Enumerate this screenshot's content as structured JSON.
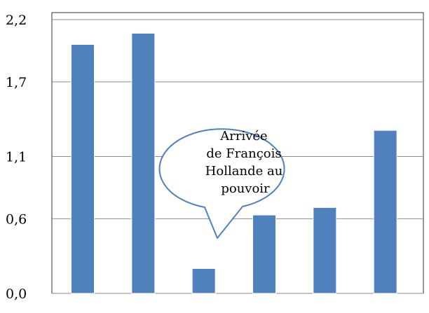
{
  "chart_data": {
    "type": "bar",
    "categories": [
      "",
      "",
      "",
      "",
      "",
      ""
    ],
    "values": [
      2.0,
      2.09,
      0.2,
      0.63,
      0.69,
      1.31
    ],
    "ylim": [
      0,
      2.2
    ],
    "yticks": [
      {
        "value": 0.0,
        "label": "0,0"
      },
      {
        "value": 0.6,
        "label": "0,6"
      },
      {
        "value": 1.1,
        "label": "1,1"
      },
      {
        "value": 1.7,
        "label": "1,7"
      },
      {
        "value": 2.2,
        "label": "2,2"
      }
    ],
    "grid": true,
    "bar_color": "#4f81bd",
    "annotations": [
      {
        "lines": [
          "Arrivée",
          "de François",
          "Hollande au",
          "pouvoir"
        ],
        "target_bar": 2
      }
    ]
  }
}
